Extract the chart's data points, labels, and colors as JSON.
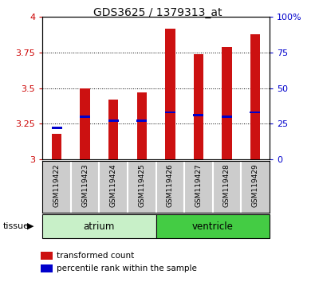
{
  "title": "GDS3625 / 1379313_at",
  "samples": [
    "GSM119422",
    "GSM119423",
    "GSM119424",
    "GSM119425",
    "GSM119426",
    "GSM119427",
    "GSM119428",
    "GSM119429"
  ],
  "transformed_counts": [
    3.18,
    3.5,
    3.42,
    3.47,
    3.92,
    3.74,
    3.79,
    3.88
  ],
  "percentile_ranks": [
    22,
    30,
    27,
    27,
    33,
    31,
    30,
    33
  ],
  "ylim_left": [
    3.0,
    4.0
  ],
  "ylim_right": [
    0,
    100
  ],
  "yticks_left": [
    3.0,
    3.25,
    3.5,
    3.75,
    4.0
  ],
  "yticks_right": [
    0,
    25,
    50,
    75,
    100
  ],
  "ytick_labels_left": [
    "3",
    "3.25",
    "3.5",
    "3.75",
    "4"
  ],
  "ytick_labels_right": [
    "0",
    "25",
    "50",
    "75",
    "100%"
  ],
  "tissues": [
    {
      "label": "atrium",
      "start": 0,
      "end": 4,
      "color": "#c8f0c8"
    },
    {
      "label": "ventricle",
      "start": 4,
      "end": 8,
      "color": "#44cc44"
    }
  ],
  "bar_color": "#cc1111",
  "blue_marker_color": "#0000cc",
  "bar_width": 0.35,
  "tissue_label": "tissue",
  "legend_entries": [
    {
      "label": "transformed count",
      "color": "#cc1111"
    },
    {
      "label": "percentile rank within the sample",
      "color": "#0000cc"
    }
  ],
  "sample_bg_color": "#cccccc",
  "separator_color": "#ffffff",
  "ylabel_left_color": "#cc0000",
  "ylabel_right_color": "#0000cc",
  "grid_color": "#000000"
}
